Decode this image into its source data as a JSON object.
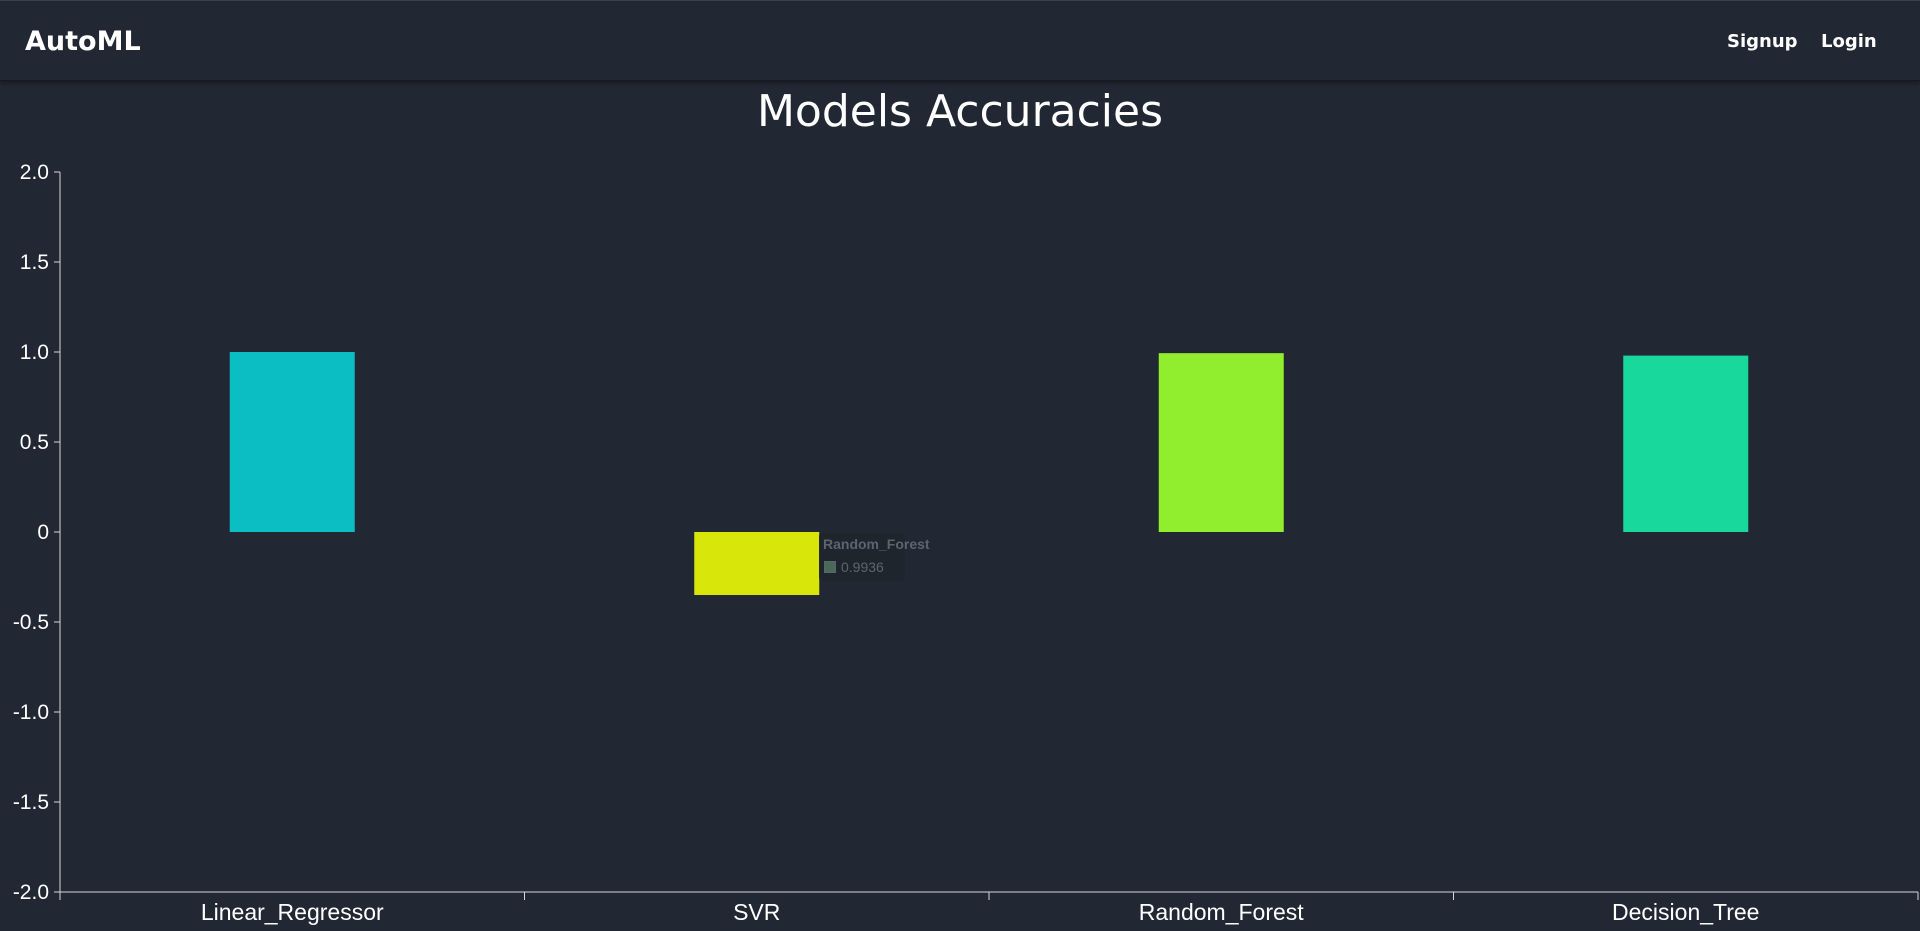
{
  "navbar": {
    "brand": "AutoML",
    "links": [
      {
        "label": "Signup"
      },
      {
        "label": "Login"
      }
    ]
  },
  "chart_data": {
    "type": "bar",
    "title": "Models Accuracies",
    "xlabel": "",
    "ylabel": "",
    "categories": [
      "Linear_Regressor",
      "SVR",
      "Random_Forest",
      "Decision_Tree"
    ],
    "values": [
      1.0,
      -0.35,
      0.9936,
      0.98
    ],
    "colors": [
      "#0bbec4",
      "#d8e609",
      "#90ee2e",
      "#18d99b"
    ],
    "ylim": [
      -2.0,
      2.0
    ],
    "yticks": [
      "2.0",
      "1.5",
      "1.0",
      "0.5",
      "0",
      "-0.5",
      "-1.0",
      "-1.5",
      "-2.0"
    ],
    "grid": false,
    "legend": "none",
    "tooltip": {
      "title": "Random_Forest",
      "value": "0.9936"
    }
  }
}
